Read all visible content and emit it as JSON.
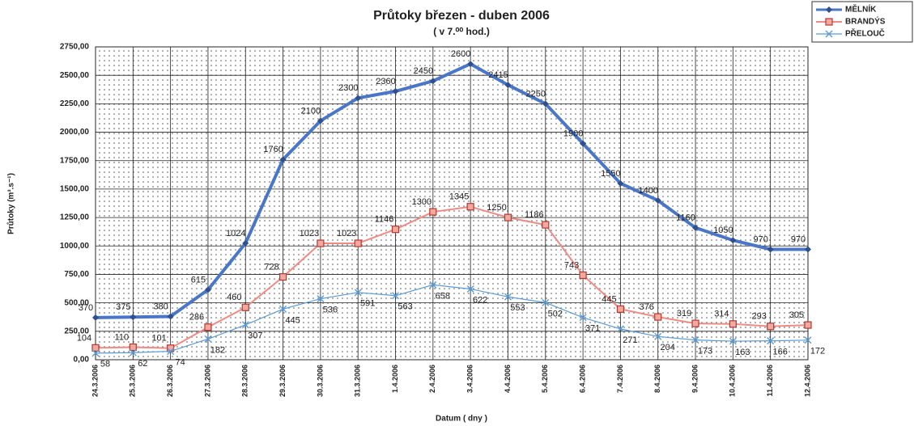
{
  "chart_data": {
    "type": "line",
    "title": "Průtoky březen - duben  2006",
    "subtitle": "( v 7.⁰⁰ hod.)",
    "x_label": "Datum ( dny )",
    "y_label": "Průtoky (m³.s⁻¹)",
    "categories": [
      "24.3.2006",
      "25.3.2006",
      "26.3.2006",
      "27.3.2006",
      "28.3.2006",
      "29.3.2006",
      "30.3.2006",
      "31.3.2006",
      "1.4.2006",
      "2.4.2006",
      "3.4.2006",
      "4.4.2006",
      "5.4.2006",
      "6.4.2006",
      "7.4.2006",
      "8.4.2006",
      "9.4.2006",
      "10.4.2006",
      "11.4.2006",
      "12.4.2006"
    ],
    "series": [
      {
        "name": "MĚLNÍK",
        "color": "#4a76c8",
        "values": [
          370,
          375,
          380,
          615,
          1024,
          1760,
          2100,
          2300,
          2360,
          2450,
          2600,
          2415,
          2250,
          1900,
          1550,
          1400,
          1160,
          1050,
          970,
          970
        ]
      },
      {
        "name": "BRANDÝS",
        "color": "#f08a84",
        "values": [
          104,
          110,
          101,
          286,
          460,
          728,
          1023,
          1023,
          1146,
          1300,
          1345,
          1250,
          1186,
          743,
          445,
          376,
          319,
          314,
          293,
          305
        ]
      },
      {
        "name": "PŘELOUČ",
        "color": "#5b9bd5",
        "values": [
          58,
          62,
          74,
          182,
          307,
          445,
          536,
          591,
          563,
          658,
          622,
          553,
          502,
          371,
          271,
          204,
          173,
          163,
          166,
          172
        ]
      }
    ],
    "ylim": [
      0,
      2750
    ],
    "yticks": [
      {
        "value": 0,
        "label": "0,00"
      },
      {
        "value": 250,
        "label": "250,00"
      },
      {
        "value": 500,
        "label": "500,00"
      },
      {
        "value": 750,
        "label": "750,00"
      },
      {
        "value": 1000,
        "label": "1000,00"
      },
      {
        "value": 1250,
        "label": "1250,00"
      },
      {
        "value": 1500,
        "label": "1500,00"
      },
      {
        "value": 1750,
        "label": "1750,00"
      },
      {
        "value": 2000,
        "label": "2000,00"
      },
      {
        "value": 2250,
        "label": "2250,00"
      },
      {
        "value": 2500,
        "label": "2500,00"
      },
      {
        "value": 2750,
        "label": "2750,00"
      }
    ],
    "grid": true,
    "legend": "top-right"
  }
}
